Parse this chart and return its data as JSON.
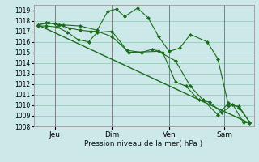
{
  "background_color": "#cce8e8",
  "grid_color": "#99ccbb",
  "line_color": "#1a6b1a",
  "marker_color": "#1a6b1a",
  "xlabel": "Pression niveau de la mer( hPa )",
  "ylim": [
    1008,
    1019.5
  ],
  "yticks": [
    1008,
    1009,
    1010,
    1011,
    1012,
    1013,
    1014,
    1015,
    1016,
    1017,
    1018,
    1019
  ],
  "xtick_labels": [
    "Jeu",
    "Dim",
    "Ven",
    "Sam"
  ],
  "xtick_positions": [
    0.08,
    0.35,
    0.62,
    0.88
  ],
  "series": [
    {
      "x": [
        0.0,
        1.0
      ],
      "y": [
        1017.6,
        1008.3
      ],
      "style": "-",
      "marker": false,
      "linewidth": 1.0
    },
    {
      "x": [
        0.0,
        0.04,
        0.08,
        0.12,
        0.2,
        0.28,
        0.33,
        0.37,
        0.41,
        0.47,
        0.52,
        0.57,
        0.62,
        0.67,
        0.72,
        0.8,
        0.85,
        0.9,
        0.95,
        1.0
      ],
      "y": [
        1017.6,
        1017.8,
        1017.7,
        1017.6,
        1017.5,
        1017.1,
        1018.9,
        1019.1,
        1018.4,
        1019.2,
        1018.3,
        1016.5,
        1015.1,
        1015.4,
        1016.7,
        1016.0,
        1014.4,
        1010.0,
        1009.9,
        1008.4
      ],
      "style": "-",
      "marker": true,
      "linewidth": 0.8
    },
    {
      "x": [
        0.0,
        0.04,
        0.09,
        0.14,
        0.19,
        0.24,
        0.28,
        0.35,
        0.42,
        0.49,
        0.54,
        0.59,
        0.65,
        0.7,
        0.76,
        0.81,
        0.87,
        0.92,
        0.97,
        1.0
      ],
      "y": [
        1017.5,
        1017.5,
        1017.4,
        1016.9,
        1016.2,
        1016.0,
        1016.9,
        1017.0,
        1015.2,
        1015.0,
        1015.3,
        1015.0,
        1012.2,
        1011.8,
        1010.5,
        1010.3,
        1009.3,
        1010.1,
        1008.4,
        1008.3
      ],
      "style": "-",
      "marker": true,
      "linewidth": 0.8
    },
    {
      "x": [
        0.0,
        0.05,
        0.1,
        0.15,
        0.2,
        0.25,
        0.28,
        0.35,
        0.43,
        0.57,
        0.65,
        0.72,
        0.78,
        0.85,
        0.9,
        0.95,
        1.0
      ],
      "y": [
        1017.6,
        1017.8,
        1017.6,
        1017.3,
        1017.1,
        1017.0,
        1017.0,
        1016.5,
        1015.0,
        1015.1,
        1014.2,
        1011.8,
        1010.5,
        1009.1,
        1010.2,
        1009.8,
        1008.4
      ],
      "style": "-",
      "marker": true,
      "linewidth": 0.8
    }
  ]
}
